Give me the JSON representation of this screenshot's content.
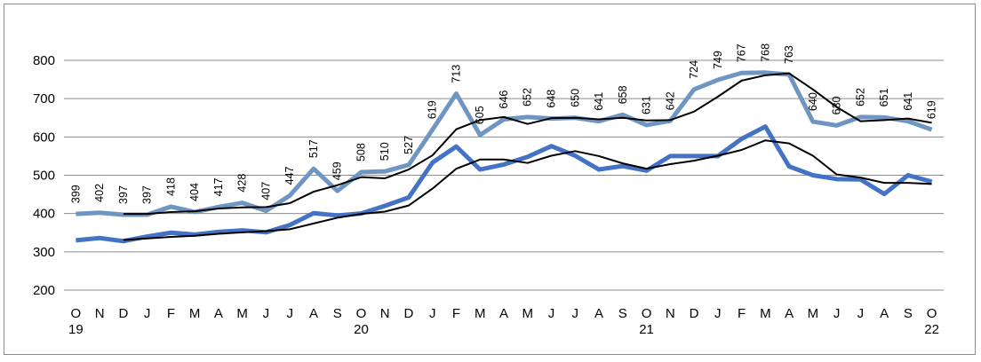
{
  "chart_data": {
    "type": "line",
    "title": "",
    "xlabel": "",
    "ylabel": "",
    "ylim": [
      200,
      800
    ],
    "yticks": [
      200,
      300,
      400,
      500,
      600,
      700,
      800
    ],
    "grid": "horizontal",
    "legend": "none",
    "categories": [
      "O",
      "N",
      "D",
      "J",
      "F",
      "M",
      "A",
      "M",
      "J",
      "J",
      "A",
      "S",
      "O",
      "N",
      "D",
      "J",
      "F",
      "M",
      "A",
      "M",
      "J",
      "J",
      "A",
      "S",
      "O",
      "N",
      "D",
      "J",
      "F",
      "M",
      "A",
      "M",
      "J",
      "J",
      "A",
      "S",
      "O"
    ],
    "year_labels": [
      {
        "label": "19",
        "category_index": 0
      },
      {
        "label": "20",
        "category_index": 12
      },
      {
        "label": "21",
        "category_index": 24
      },
      {
        "label": "22",
        "category_index": 36
      }
    ],
    "series": [
      {
        "color": "#6f96c3",
        "line_width": 5,
        "show_labels": true,
        "values": [
          399,
          402,
          397,
          397,
          418,
          404,
          417,
          428,
          407,
          447,
          517,
          459,
          508,
          510,
          527,
          619,
          713,
          605,
          646,
          652,
          648,
          650,
          641,
          658,
          631,
          642,
          724,
          749,
          767,
          768,
          763,
          640,
          630,
          652,
          651,
          641,
          619
        ]
      },
      {
        "color": "#000000",
        "line_width": 2,
        "show_labels": false,
        "values": [
          null,
          null,
          399,
          399,
          404,
          406,
          413,
          416,
          417,
          427,
          457,
          474,
          495,
          492,
          515,
          552,
          620,
          644,
          652,
          634,
          649,
          650,
          646,
          650,
          643,
          644,
          666,
          705,
          747,
          761,
          766,
          724,
          678,
          641,
          644,
          648,
          637
        ]
      },
      {
        "color": "#4472c4",
        "line_width": 5,
        "show_labels": false,
        "values": [
          330,
          336,
          328,
          340,
          350,
          345,
          352,
          356,
          351,
          370,
          401,
          395,
          400,
          420,
          442,
          533,
          575,
          515,
          528,
          548,
          576,
          551,
          515,
          524,
          512,
          550,
          550,
          550,
          595,
          627,
          523,
          500,
          490,
          489,
          451,
          500,
          483
        ]
      },
      {
        "color": "#000000",
        "line_width": 2,
        "show_labels": false,
        "values": [
          null,
          null,
          331,
          335,
          339,
          342,
          347,
          351,
          354,
          359,
          374,
          389,
          399,
          405,
          421,
          465,
          517,
          541,
          541,
          532,
          551,
          563,
          550,
          531,
          517,
          529,
          538,
          551,
          566,
          591,
          583,
          551,
          502,
          494,
          480,
          480,
          477
        ]
      }
    ]
  }
}
